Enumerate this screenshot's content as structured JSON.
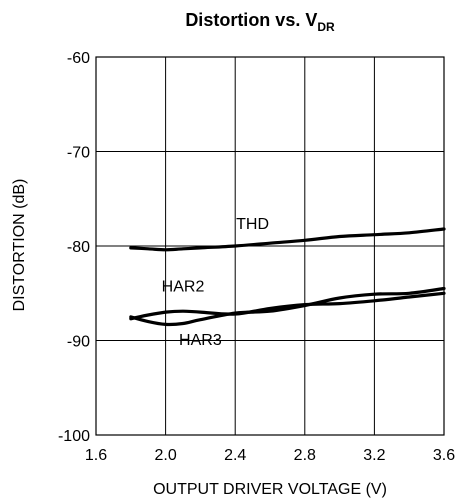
{
  "chart_data": {
    "type": "line",
    "title": "Distortion vs. V",
    "title_subscript": "DR",
    "xlabel": "OUTPUT DRIVER VOLTAGE  (V)",
    "ylabel": "DISTORTION (dB)",
    "xlim": [
      1.6,
      3.6
    ],
    "ylim": [
      -100,
      -60
    ],
    "x_ticks": [
      "1.6",
      "2.0",
      "2.4",
      "2.8",
      "3.2",
      "3.6"
    ],
    "y_ticks": [
      "-60",
      "-70",
      "-80",
      "-90",
      "-100"
    ],
    "grid": true,
    "series": [
      {
        "name": "THD",
        "x": [
          1.8,
          1.9,
          2.0,
          2.1,
          2.2,
          2.4,
          2.6,
          2.8,
          3.0,
          3.2,
          3.4,
          3.6
        ],
        "values": [
          -80.2,
          -80.3,
          -80.4,
          -80.3,
          -80.2,
          -80.0,
          -79.7,
          -79.4,
          -79.0,
          -78.8,
          -78.6,
          -78.2
        ]
      },
      {
        "name": "HAR2",
        "x": [
          1.8,
          1.9,
          2.0,
          2.1,
          2.2,
          2.4,
          2.6,
          2.8,
          3.0,
          3.2,
          3.4,
          3.6
        ],
        "values": [
          -87.7,
          -87.3,
          -87.0,
          -86.9,
          -87.0,
          -87.2,
          -86.6,
          -86.2,
          -86.1,
          -85.8,
          -85.4,
          -85.0
        ]
      },
      {
        "name": "HAR3",
        "x": [
          1.8,
          1.9,
          2.0,
          2.1,
          2.2,
          2.4,
          2.6,
          2.8,
          3.0,
          3.2,
          3.4,
          3.6
        ],
        "values": [
          -87.5,
          -88.0,
          -88.3,
          -88.2,
          -87.8,
          -87.1,
          -86.9,
          -86.3,
          -85.5,
          -85.1,
          -85.0,
          -84.5
        ]
      }
    ],
    "annotations": [
      {
        "text": "THD",
        "x": 2.5,
        "y": -78.2
      },
      {
        "text": "HAR2",
        "x": 2.1,
        "y": -84.8
      },
      {
        "text": "HAR3",
        "x": 2.2,
        "y": -90.5
      }
    ]
  }
}
